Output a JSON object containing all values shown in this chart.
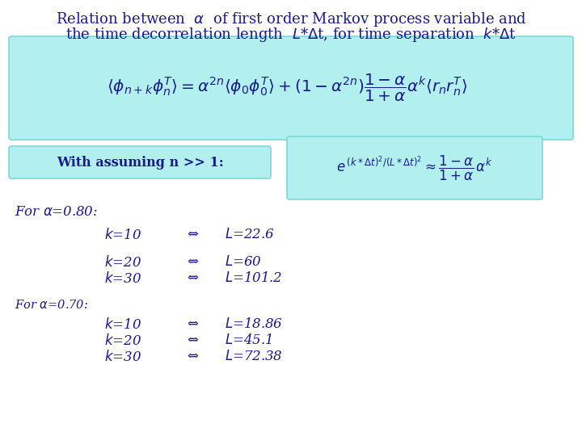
{
  "bg_color": "#ffffff",
  "title_color": "#1a1a8c",
  "text_color": "#1a1a8c",
  "box_color": "#b2f0f0",
  "box_edge": "#7dd8d8",
  "rows_80": [
    [
      "k=10",
      "⇔",
      "L=22.6"
    ],
    [
      "k=20",
      "⇔",
      "L=60"
    ],
    [
      "k=30",
      "⇔",
      "L=101.2"
    ]
  ],
  "rows_70": [
    [
      "k=10",
      "⇔",
      "L=18.86"
    ],
    [
      "k=20",
      "⇔",
      "L=45.1"
    ],
    [
      "k=30",
      "⇔",
      "L=72.38"
    ]
  ]
}
